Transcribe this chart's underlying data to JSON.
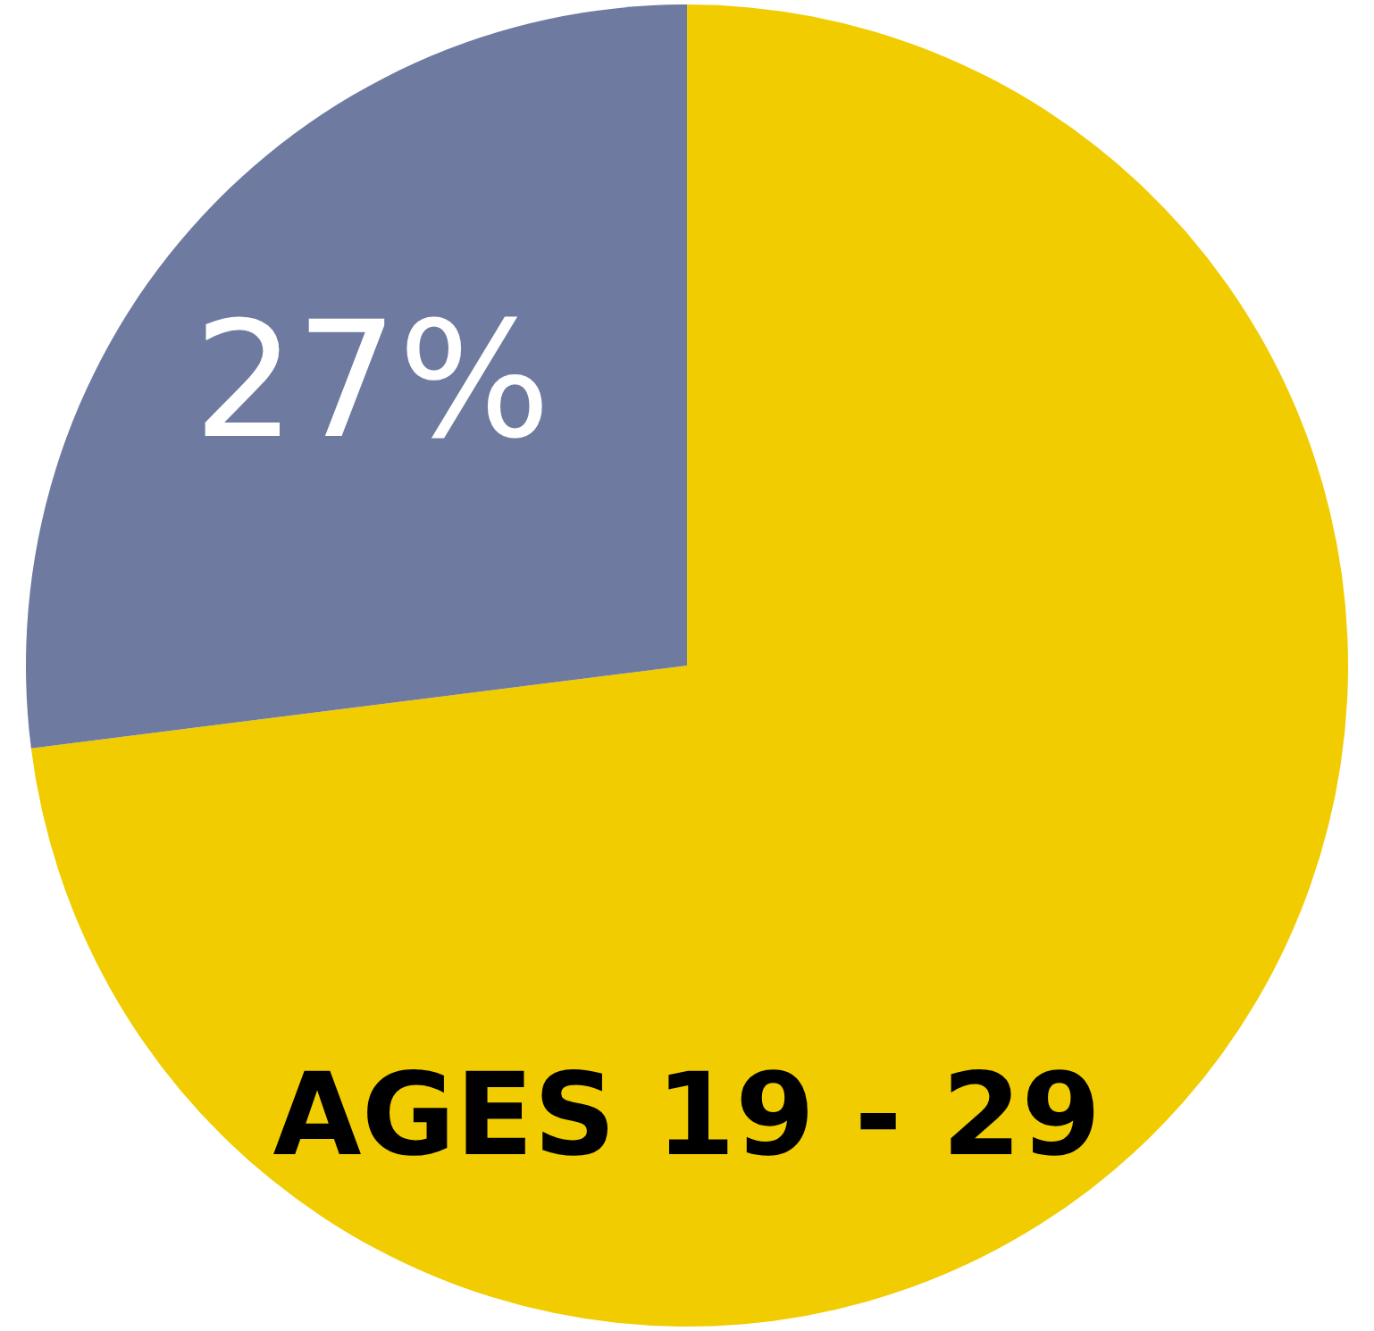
{
  "chart_data": {
    "type": "pie",
    "title": "AGES 19 - 29",
    "categories": [
      null,
      null
    ],
    "values": [
      73,
      27
    ],
    "colors": [
      "#f0cc00",
      "#6e7aa0"
    ],
    "value_labels": [
      null,
      "27%"
    ]
  }
}
